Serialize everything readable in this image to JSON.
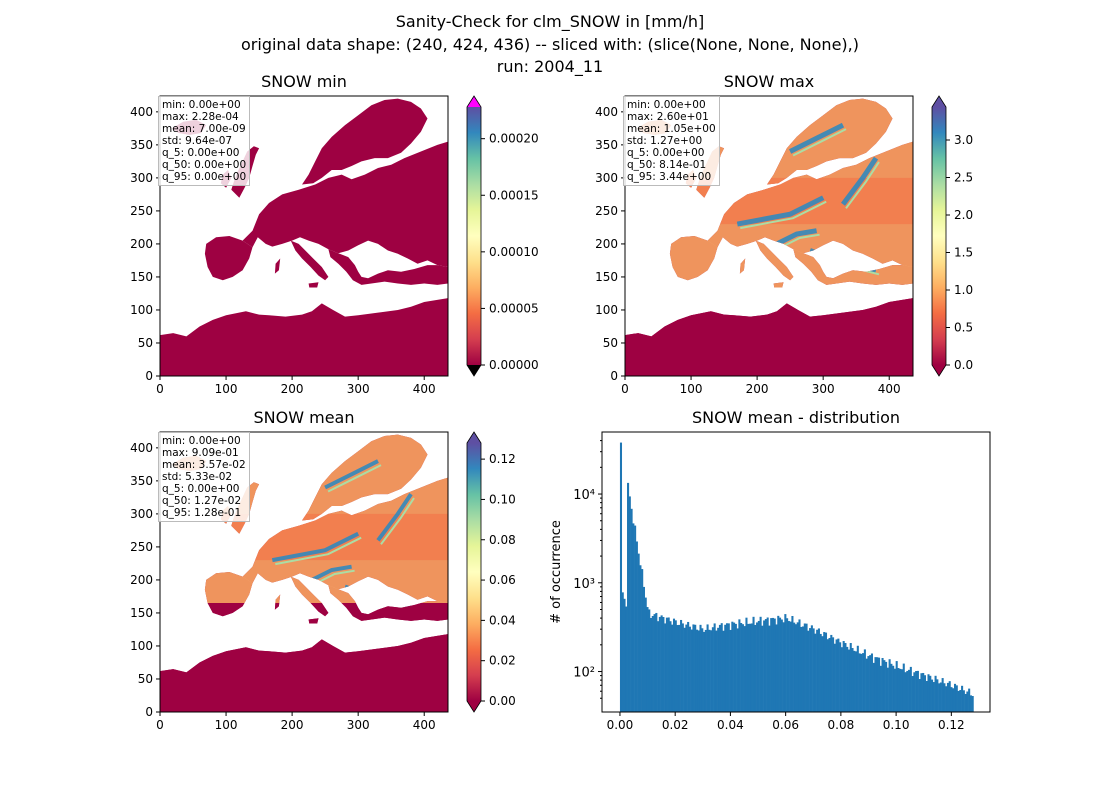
{
  "figure": {
    "title_lines": [
      "Sanity-Check for clm_SNOW in [mm/h]",
      "original data shape: (240, 424, 436) -- sliced with: (slice(None, None, None),)",
      "run: 2004_11"
    ]
  },
  "colors": {
    "land_fill": "#9e0142",
    "histogram_bar": "#1f77b4",
    "colormap": [
      "#9e0142",
      "#d53e4f",
      "#f46d43",
      "#fdae61",
      "#fee08b",
      "#ffffbf",
      "#e6f598",
      "#abdda4",
      "#66c2a5",
      "#3288bd",
      "#5e4fa2"
    ],
    "over_color": "#ff00ff"
  },
  "chart_data": [
    {
      "type": "heatmap",
      "title": "SNOW min",
      "x_ticks": [
        "0",
        "100",
        "200",
        "300",
        "400"
      ],
      "y_ticks": [
        "0",
        "50",
        "100",
        "150",
        "200",
        "250",
        "300",
        "350",
        "400"
      ],
      "xlim": [
        0,
        436
      ],
      "ylim": [
        0,
        424
      ],
      "colorbar": {
        "min": 0.0,
        "max": 0.000228,
        "ticks": [
          "0.00000",
          "0.00005",
          "0.00010",
          "0.00015",
          "0.00020"
        ],
        "tick_values": [
          0,
          5e-05,
          0.0001,
          0.00015,
          0.0002
        ],
        "extend": "both",
        "over_color": "#ff00ff",
        "under_color": "#000000"
      },
      "stats": [
        "min: 0.00e+00",
        "max: 2.28e-04",
        "mean: 7.00e-09",
        "std: 9.64e-07",
        "q_5: 0.00e+00",
        "q_50: 0.00e+00",
        "q_95: 0.00e+00"
      ]
    },
    {
      "type": "heatmap",
      "title": "SNOW max",
      "x_ticks": [
        "0",
        "100",
        "200",
        "300",
        "400"
      ],
      "y_ticks": [
        "0",
        "50",
        "100",
        "150",
        "200",
        "250",
        "300",
        "350",
        "400"
      ],
      "xlim": [
        0,
        436
      ],
      "ylim": [
        0,
        424
      ],
      "colorbar": {
        "min": 0.0,
        "max": 3.44,
        "ticks": [
          "0.0",
          "0.5",
          "1.0",
          "1.5",
          "2.0",
          "2.5",
          "3.0"
        ],
        "tick_values": [
          0,
          0.5,
          1.0,
          1.5,
          2.0,
          2.5,
          3.0
        ],
        "extend": "both",
        "over_color": "#5e4fa2",
        "under_color": "#9e0142"
      },
      "stats": [
        "min: 0.00e+00",
        "max: 2.60e+01",
        "mean: 1.05e+00",
        "std: 1.27e+00",
        "q_5: 0.00e+00",
        "q_50: 8.14e-01",
        "q_95: 3.44e+00"
      ]
    },
    {
      "type": "heatmap",
      "title": "SNOW mean",
      "x_ticks": [
        "0",
        "100",
        "200",
        "300",
        "400"
      ],
      "y_ticks": [
        "0",
        "50",
        "100",
        "150",
        "200",
        "250",
        "300",
        "350",
        "400"
      ],
      "xlim": [
        0,
        436
      ],
      "ylim": [
        0,
        424
      ],
      "colorbar": {
        "min": 0.0,
        "max": 0.128,
        "ticks": [
          "0.00",
          "0.02",
          "0.04",
          "0.06",
          "0.08",
          "0.10",
          "0.12"
        ],
        "tick_values": [
          0,
          0.02,
          0.04,
          0.06,
          0.08,
          0.1,
          0.12
        ],
        "extend": "both",
        "over_color": "#5e4fa2",
        "under_color": "#9e0142"
      },
      "stats": [
        "min: 0.00e+00",
        "max: 9.09e-01",
        "mean: 3.57e-02",
        "std: 5.33e-02",
        "q_5: 0.00e+00",
        "q_50: 1.27e-02",
        "q_95: 1.28e-01"
      ]
    },
    {
      "type": "bar",
      "title": "SNOW mean - distribution",
      "ylabel": "# of occurrence",
      "xlabel": "",
      "y_scale": "log",
      "xlim": [
        -0.0065,
        0.134
      ],
      "ylim": [
        35,
        50000
      ],
      "x_ticks": [
        "0.00",
        "0.02",
        "0.04",
        "0.06",
        "0.08",
        "0.10",
        "0.12"
      ],
      "x_tick_values": [
        0,
        0.02,
        0.04,
        0.06,
        0.08,
        0.1,
        0.12
      ],
      "y_ticks": [
        "10²",
        "10³",
        "10⁴"
      ],
      "y_tick_values": [
        100,
        1000,
        10000
      ],
      "bin_start": 0.0,
      "bin_width": 0.00064,
      "x": [
        0,
        0.01,
        0.02,
        0.03,
        0.04,
        0.05,
        0.06,
        0.07,
        0.08,
        0.09,
        0.1,
        0.11,
        0.12,
        0.128
      ],
      "values": [
        38000,
        450,
        360,
        300,
        340,
        370,
        400,
        300,
        210,
        150,
        115,
        90,
        70,
        55
      ]
    }
  ]
}
